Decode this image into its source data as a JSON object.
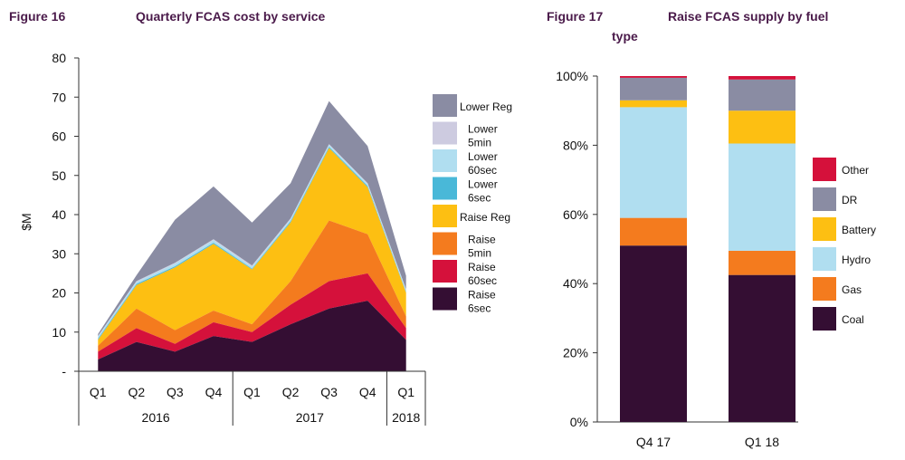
{
  "figures": {
    "fig16_label": "Figure 16",
    "fig16_title": "Quarterly FCAS cost by service",
    "fig17_label": "Figure 17",
    "fig17_title_line1": "Raise FCAS supply by fuel",
    "fig17_title_line2": "type"
  },
  "colors": {
    "lower_reg": "#8a8ca3",
    "lower_5min": "#cdcbe0",
    "lower_60sec": "#b0def0",
    "lower_6sec": "#49b8d8",
    "raise_reg": "#fdbf12",
    "raise_5min": "#f47b1e",
    "raise_60sec": "#d5113b",
    "raise_6sec": "#340e33",
    "other": "#d5113b",
    "dr": "#8a8ca3",
    "battery": "#fdbf12",
    "hydro": "#b0def0",
    "gas": "#f47b1e",
    "coal": "#340e33"
  },
  "chart_data": [
    {
      "type": "area",
      "stacked": true,
      "ylabel": "$M",
      "ylim": [
        0,
        80
      ],
      "yticks": [
        "80",
        "70",
        "60",
        "50",
        "40",
        "30",
        "20",
        "10",
        "-"
      ],
      "grid": false,
      "legend": "right",
      "categories": [
        "Q1",
        "Q2",
        "Q3",
        "Q4",
        "Q1",
        "Q2",
        "Q3",
        "Q4",
        "Q1"
      ],
      "groups": [
        {
          "label": "2016",
          "span": 4
        },
        {
          "label": "2017",
          "span": 4
        },
        {
          "label": "2018",
          "span": 1
        }
      ],
      "series": [
        {
          "key": "raise_6sec",
          "name": "Raise 6sec",
          "values": [
            3,
            7.5,
            5,
            9,
            7.5,
            12,
            16,
            18,
            8
          ]
        },
        {
          "key": "raise_60sec",
          "name": "Raise 60sec",
          "values": [
            2,
            3.5,
            2,
            3.5,
            2.5,
            5,
            7,
            7,
            3
          ]
        },
        {
          "key": "raise_5min",
          "name": "Raise 5min",
          "values": [
            1.5,
            5,
            3.5,
            3,
            2,
            6,
            15.5,
            10,
            3
          ]
        },
        {
          "key": "raise_reg",
          "name": "Raise Reg",
          "values": [
            1.5,
            6,
            16,
            17,
            14,
            15,
            18.5,
            12,
            6
          ]
        },
        {
          "key": "lower_6sec",
          "name": "Lower 6sec",
          "values": [
            0.3,
            0.3,
            0.3,
            0.3,
            0.2,
            0.3,
            0.3,
            0.3,
            0.2
          ]
        },
        {
          "key": "lower_60sec",
          "name": "Lower 60sec",
          "values": [
            0.5,
            0.5,
            0.7,
            0.7,
            0.5,
            0.5,
            0.5,
            0.5,
            0.5
          ]
        },
        {
          "key": "lower_5min",
          "name": "Lower 5min",
          "values": [
            0.2,
            0.2,
            0.2,
            0.2,
            0.3,
            0.2,
            0.2,
            0.2,
            0.2
          ]
        },
        {
          "key": "lower_reg",
          "name": "Lower Reg",
          "values": [
            0.5,
            1.5,
            11,
            13.5,
            11,
            9,
            11,
            9.5,
            3.5
          ]
        }
      ]
    },
    {
      "type": "bar",
      "stacked": true,
      "percent": true,
      "ylim": [
        0,
        100
      ],
      "yticks": [
        "100%",
        "80%",
        "60%",
        "40%",
        "20%",
        "0%"
      ],
      "grid": false,
      "legend": "right",
      "categories": [
        "Q4 17",
        "Q1 18"
      ],
      "series": [
        {
          "key": "coal",
          "name": "Coal",
          "values": [
            51,
            42.5
          ]
        },
        {
          "key": "gas",
          "name": "Gas",
          "values": [
            8,
            7
          ]
        },
        {
          "key": "hydro",
          "name": "Hydro",
          "values": [
            32,
            31
          ]
        },
        {
          "key": "battery",
          "name": "Battery",
          "values": [
            2,
            9.5
          ]
        },
        {
          "key": "dr",
          "name": "DR",
          "values": [
            6.5,
            9
          ]
        },
        {
          "key": "other",
          "name": "Other",
          "values": [
            0.5,
            1
          ]
        }
      ]
    }
  ]
}
